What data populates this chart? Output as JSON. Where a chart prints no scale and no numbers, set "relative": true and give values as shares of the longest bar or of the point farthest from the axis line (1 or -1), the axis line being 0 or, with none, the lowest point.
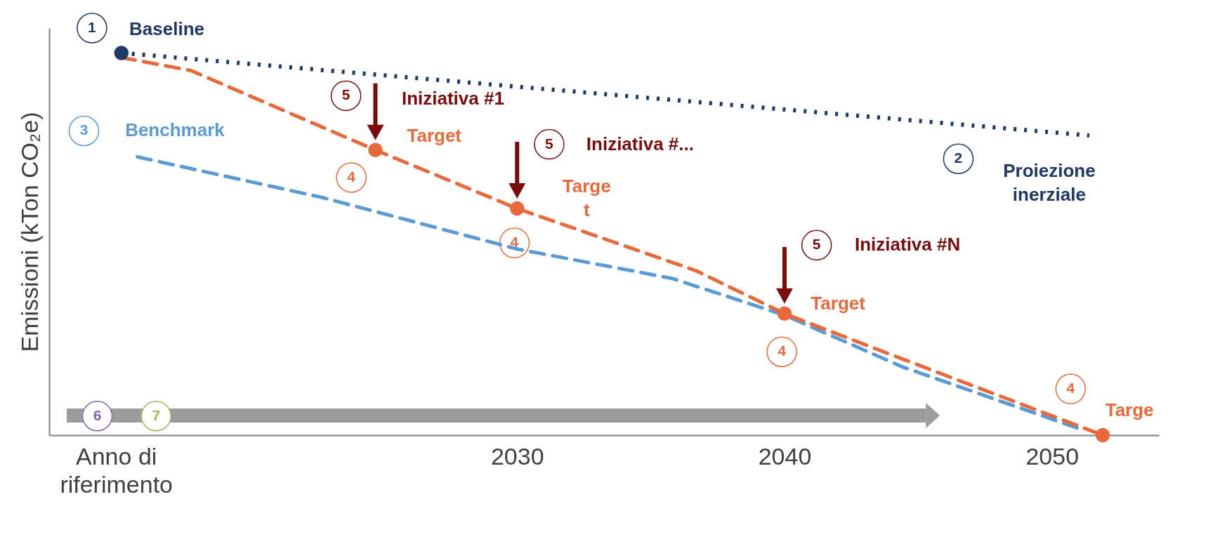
{
  "chart_data": {
    "type": "line",
    "relative": true,
    "ylabel": "Emissioni (kTon CO₂e)",
    "xlim": [
      2012.5,
      2054
    ],
    "xticks": [
      {
        "value": 2015,
        "label": "Anno di riferimento"
      },
      2030,
      2040,
      2050
    ],
    "grid": false,
    "series": [
      {
        "line_style": "dotted",
        "color": "#1f3864",
        "x": [
          2015.2,
          2051.4
        ],
        "values": [
          1,
          0.784
        ]
      },
      {
        "line_style": "dashed",
        "color": "#5b9bd5",
        "x": [
          2015.8,
          2022.7,
          2030,
          2035.8,
          2040,
          2044.4,
          2051.1
        ],
        "values": [
          0.728,
          0.622,
          0.487,
          0.41,
          0.314,
          0.179,
          0.015
        ]
      },
      {
        "line_style": "dashed",
        "color": "#e8693a",
        "x": [
          2015.2,
          2017.8,
          2024.7,
          2030,
          2036.7,
          2040,
          2043.3,
          2051.9
        ],
        "values": [
          0.988,
          0.954,
          0.746,
          0.593,
          0.43,
          0.318,
          0.229,
          0
        ]
      },
      {
        "type": "scatter",
        "marker": "circle",
        "color": "#e8693a",
        "x": [
          2024.7,
          2030,
          2040,
          2051.9
        ],
        "values": [
          0.746,
          0.593,
          0.318,
          0
        ]
      },
      {
        "type": "scatter",
        "marker": "circle",
        "color": "#1f3864",
        "x": [
          2015.2
        ],
        "values": [
          1
        ]
      }
    ],
    "annotations": [
      "1",
      "Baseline",
      "3",
      "Benchmark",
      "2",
      "Proiezione\ninerziale",
      "5",
      "Iniziativa #1",
      "Target",
      "4",
      "5",
      "Iniziativa #...",
      "Targe\nt",
      "4",
      "5",
      "Iniziativa #N",
      "Target",
      "4",
      "4",
      "Targe",
      "6",
      "7"
    ]
  }
}
